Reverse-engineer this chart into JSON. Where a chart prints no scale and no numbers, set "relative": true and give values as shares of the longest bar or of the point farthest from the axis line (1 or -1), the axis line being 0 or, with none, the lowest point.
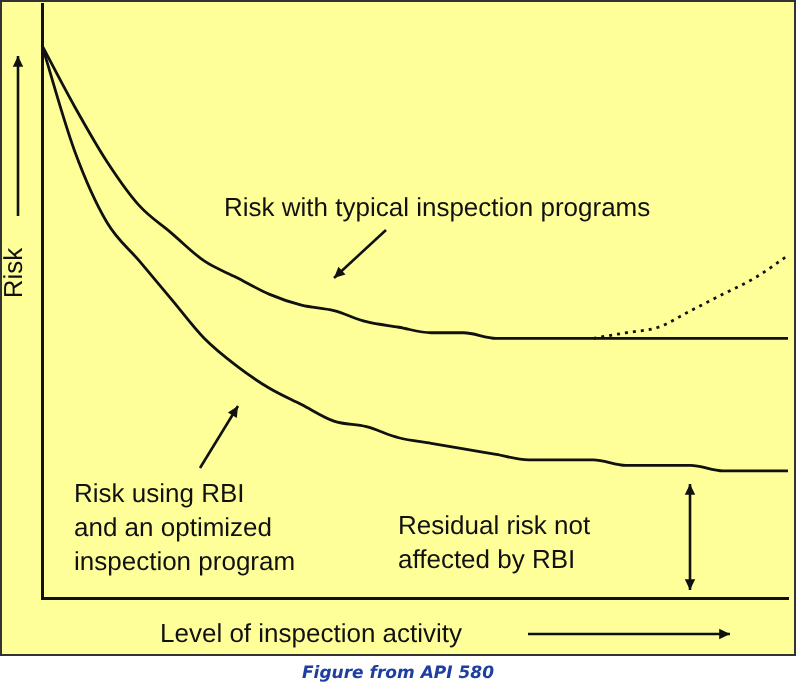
{
  "chart_data": {
    "type": "line",
    "relative": true,
    "xlabel": "Level of inspection activity",
    "ylabel": "Risk",
    "categories": [
      null,
      null,
      null,
      null,
      null,
      null,
      null,
      null,
      null,
      null,
      null,
      null,
      null,
      null,
      null,
      null,
      null,
      null,
      null,
      null,
      null,
      null,
      null,
      null
    ],
    "series": [
      {
        "color": "#111111",
        "line_style": "solid",
        "values": [
          1,
          0.89,
          0.79,
          0.71,
          0.66,
          0.61,
          0.58,
          0.55,
          0.53,
          0.52,
          0.5,
          0.49,
          0.48,
          0.48,
          0.47,
          0.47,
          0.47,
          0.47,
          0.47,
          0.47,
          0.47,
          0.47,
          0.47,
          0.47
        ]
      },
      {
        "color": "#111111",
        "line_style": "dotted",
        "values": [
          null,
          null,
          null,
          null,
          null,
          null,
          null,
          null,
          null,
          null,
          null,
          null,
          null,
          null,
          null,
          null,
          null,
          0.47,
          0.48,
          0.49,
          0.52,
          0.55,
          0.58,
          0.62
        ]
      },
      {
        "color": "#111111",
        "line_style": "solid",
        "values": [
          1,
          0.81,
          0.68,
          0.61,
          0.54,
          0.47,
          0.42,
          0.38,
          0.35,
          0.32,
          0.31,
          0.29,
          0.28,
          0.27,
          0.26,
          0.25,
          0.25,
          0.25,
          0.24,
          0.24,
          0.24,
          0.23,
          0.23,
          0.23
        ]
      }
    ],
    "annotations": [
      "Risk with typical inspection programs",
      "Risk using RBI\nand an optimized\ninspection program",
      "Residual risk not\naffected by RBI",
      "Figure from API 580"
    ],
    "grid": false,
    "legend": false,
    "marker": "none"
  }
}
